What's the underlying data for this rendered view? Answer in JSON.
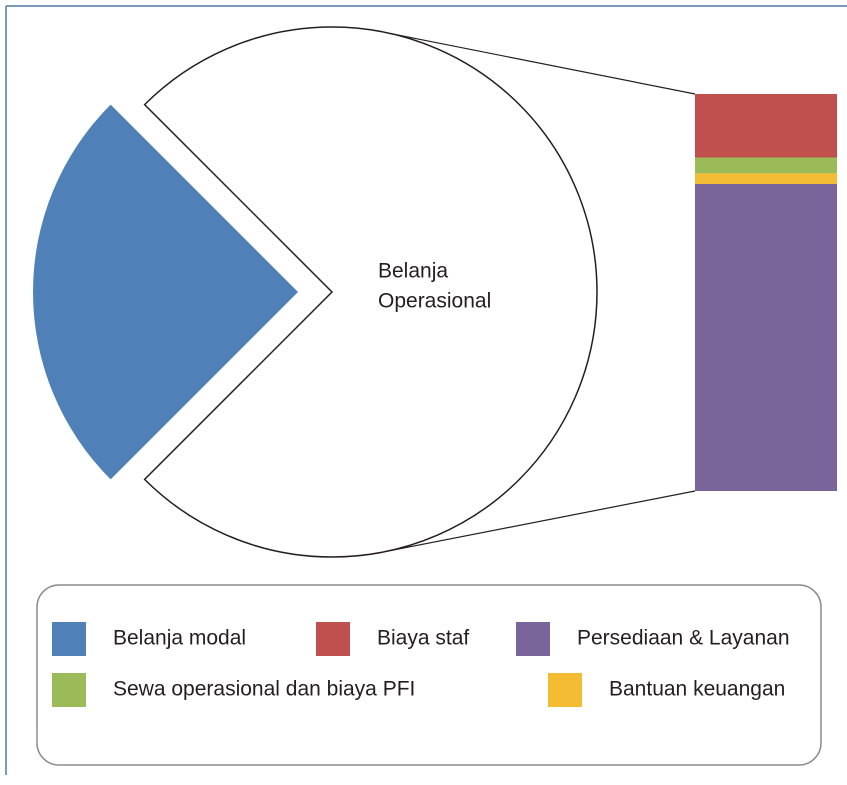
{
  "chart_data": {
    "type": "pie-of-bar",
    "pie_slice": {
      "name": "Belanja modal",
      "value": 25,
      "color": "#4f81b8"
    },
    "pie_rest": {
      "label": [
        "Belanja",
        "Operasional"
      ],
      "value": 75,
      "color": "#ffffff"
    },
    "bar_segments": [
      {
        "name": "Biaya staf",
        "value": 12,
        "color": "#c0504d"
      },
      {
        "name": "Sewa operasional dan biaya PFI",
        "value": 3,
        "color": "#9bbb59"
      },
      {
        "name": "Bantuan keuangan",
        "value": 2,
        "color": "#f4bc33"
      },
      {
        "name": "Persediaan & Layanan",
        "value": 58,
        "color": "#7a659b"
      }
    ],
    "legend": true
  }
}
